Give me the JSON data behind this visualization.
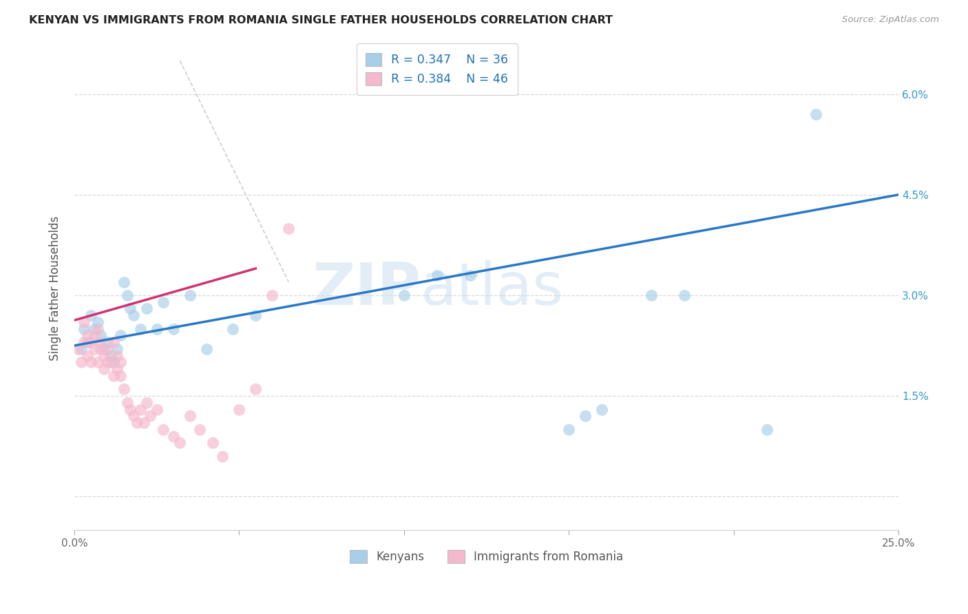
{
  "title": "KENYAN VS IMMIGRANTS FROM ROMANIA SINGLE FATHER HOUSEHOLDS CORRELATION CHART",
  "source": "Source: ZipAtlas.com",
  "ylabel": "Single Father Households",
  "xlim": [
    0.0,
    0.25
  ],
  "ylim": [
    -0.005,
    0.067
  ],
  "xticks": [
    0.0,
    0.05,
    0.1,
    0.15,
    0.2,
    0.25
  ],
  "ytick_positions": [
    0.0,
    0.015,
    0.03,
    0.045,
    0.06
  ],
  "ytick_labels_right": [
    "",
    "1.5%",
    "3.0%",
    "4.5%",
    "6.0%"
  ],
  "legend_line1": "R = 0.347    N = 36",
  "legend_line2": "R = 0.384    N = 46",
  "legend_label1": "Kenyans",
  "legend_label2": "Immigrants from Romania",
  "color_blue": "#a8cfe8",
  "color_blue_line": "#2878c8",
  "color_pink": "#f5b8cc",
  "color_pink_line": "#d43070",
  "color_ref_line": "#c8c8c8",
  "color_grid": "#d8d8d8",
  "background_color": "#ffffff",
  "watermark_zip": "ZIP",
  "watermark_atlas": "atlas",
  "blue_x": [
    0.002,
    0.003,
    0.004,
    0.005,
    0.006,
    0.007,
    0.008,
    0.009,
    0.01,
    0.011,
    0.012,
    0.013,
    0.014,
    0.015,
    0.016,
    0.017,
    0.018,
    0.02,
    0.022,
    0.025,
    0.027,
    0.03,
    0.035,
    0.04,
    0.048,
    0.055,
    0.1,
    0.11,
    0.12,
    0.15,
    0.155,
    0.16,
    0.175,
    0.185,
    0.21,
    0.225
  ],
  "blue_y": [
    0.022,
    0.025,
    0.023,
    0.027,
    0.025,
    0.026,
    0.024,
    0.022,
    0.023,
    0.021,
    0.02,
    0.022,
    0.024,
    0.032,
    0.03,
    0.028,
    0.027,
    0.025,
    0.028,
    0.025,
    0.029,
    0.025,
    0.03,
    0.022,
    0.025,
    0.027,
    0.03,
    0.033,
    0.033,
    0.01,
    0.012,
    0.013,
    0.03,
    0.03,
    0.01,
    0.057
  ],
  "pink_x": [
    0.001,
    0.002,
    0.003,
    0.003,
    0.004,
    0.004,
    0.005,
    0.005,
    0.006,
    0.006,
    0.007,
    0.007,
    0.008,
    0.008,
    0.009,
    0.009,
    0.01,
    0.01,
    0.011,
    0.012,
    0.012,
    0.013,
    0.013,
    0.014,
    0.014,
    0.015,
    0.016,
    0.017,
    0.018,
    0.019,
    0.02,
    0.021,
    0.022,
    0.023,
    0.025,
    0.027,
    0.03,
    0.032,
    0.035,
    0.038,
    0.042,
    0.045,
    0.05,
    0.055,
    0.06,
    0.065
  ],
  "pink_y": [
    0.022,
    0.02,
    0.023,
    0.026,
    0.024,
    0.021,
    0.02,
    0.023,
    0.022,
    0.024,
    0.025,
    0.02,
    0.022,
    0.023,
    0.021,
    0.019,
    0.02,
    0.022,
    0.02,
    0.018,
    0.023,
    0.019,
    0.021,
    0.018,
    0.02,
    0.016,
    0.014,
    0.013,
    0.012,
    0.011,
    0.013,
    0.011,
    0.014,
    0.012,
    0.013,
    0.01,
    0.009,
    0.008,
    0.012,
    0.01,
    0.008,
    0.006,
    0.013,
    0.016,
    0.03,
    0.04
  ],
  "blue_trend_x": [
    0.0,
    0.25
  ],
  "blue_trend_y": [
    0.0225,
    0.045
  ],
  "pink_trend_x": [
    -0.002,
    0.055
  ],
  "pink_trend_y": [
    0.026,
    0.034
  ],
  "ref_line_x": [
    0.032,
    0.065
  ],
  "ref_line_y": [
    0.065,
    0.032
  ]
}
